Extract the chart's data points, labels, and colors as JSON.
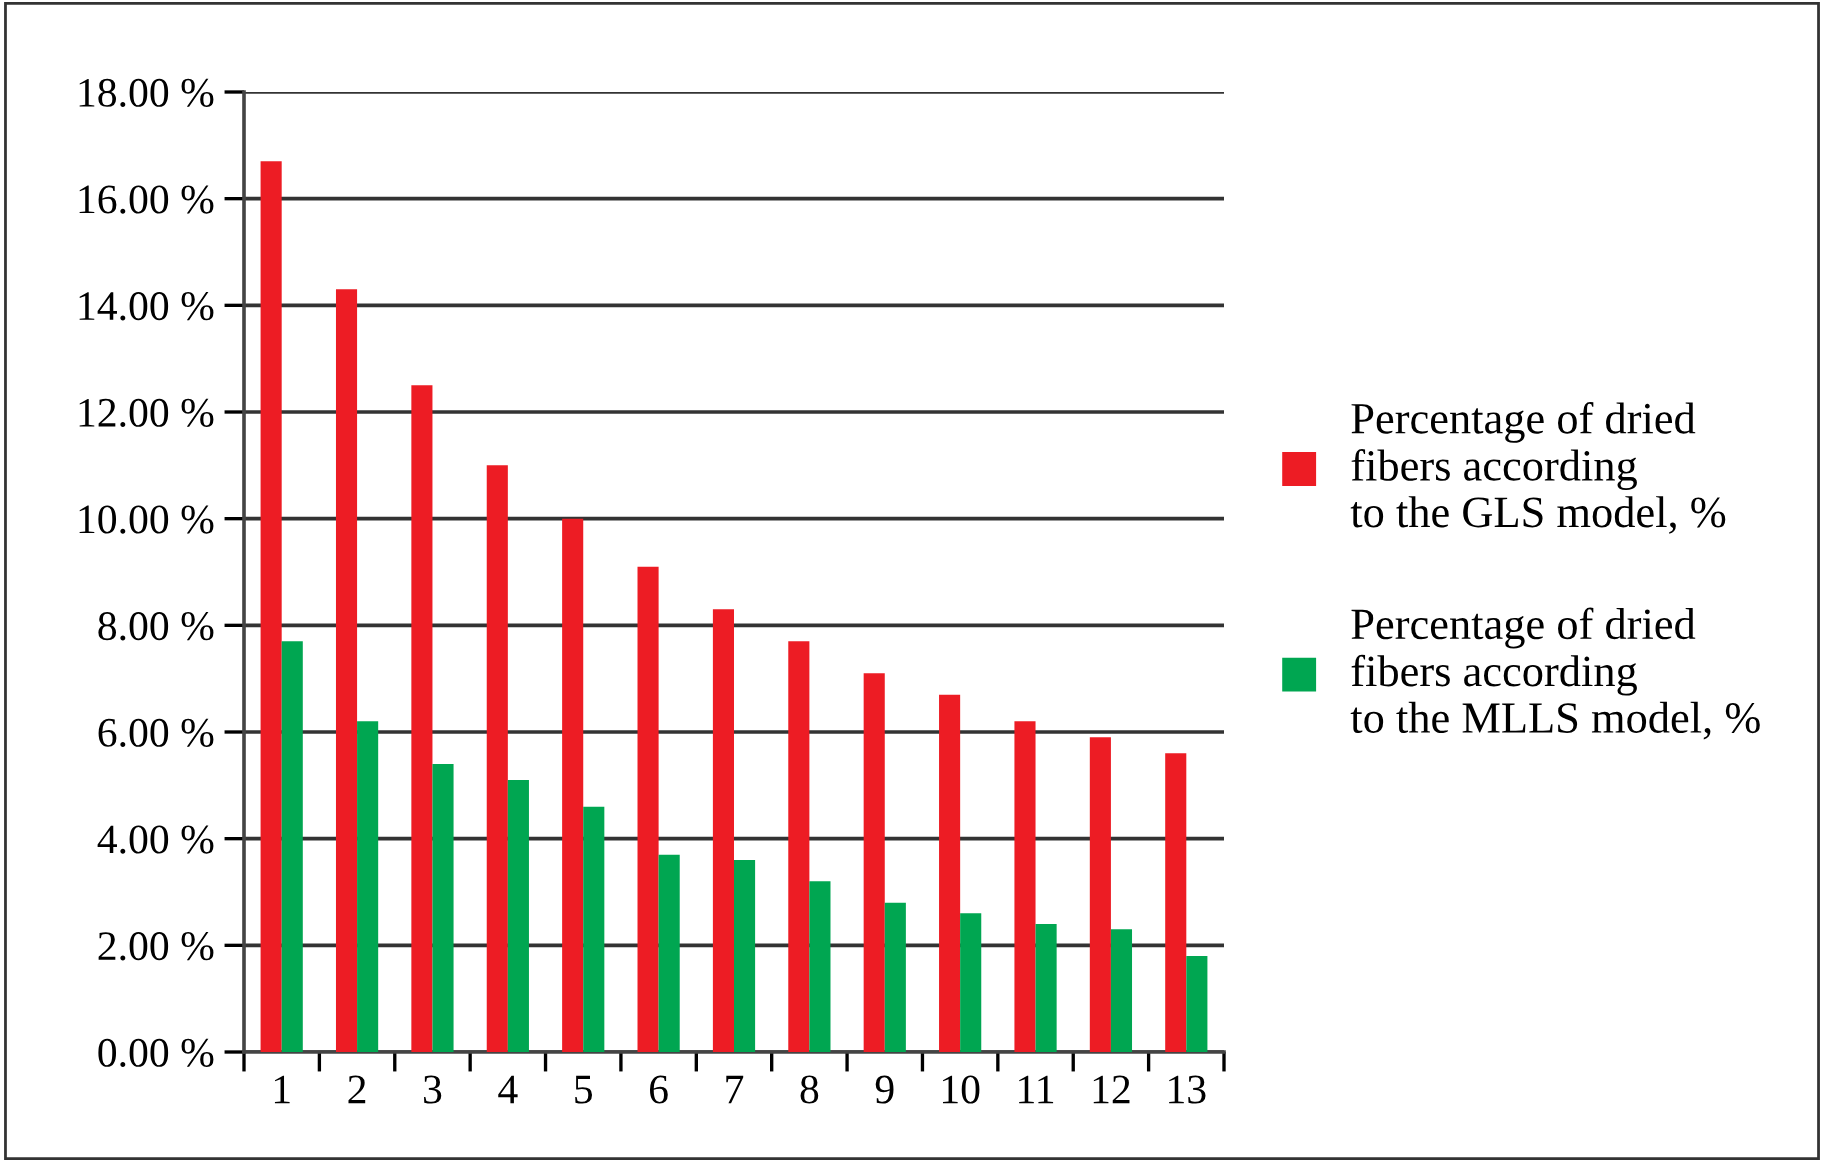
{
  "chart_data": {
    "type": "bar",
    "categories": [
      "1",
      "2",
      "3",
      "4",
      "5",
      "6",
      "7",
      "8",
      "9",
      "10",
      "11",
      "12",
      "13"
    ],
    "series": [
      {
        "name": "Percentage of dried\nfibers according\nto the GLS model, %",
        "color": "#ed1c24",
        "values": [
          16.7,
          14.3,
          12.5,
          11.0,
          10.0,
          9.1,
          8.3,
          7.7,
          7.1,
          6.7,
          6.2,
          5.9,
          5.6
        ]
      },
      {
        "name": "Percentage of dried\nfibers according\nto the MLLS model, %",
        "color": "#00a651",
        "values": [
          7.7,
          6.2,
          5.4,
          5.1,
          4.6,
          3.7,
          3.6,
          3.2,
          2.8,
          2.6,
          2.4,
          2.3,
          1.8
        ]
      }
    ],
    "ylim": [
      0,
      18
    ],
    "yticks": [
      {
        "value": 0,
        "label": "0.00 %"
      },
      {
        "value": 2,
        "label": "2.00 %"
      },
      {
        "value": 4,
        "label": "4.00 %"
      },
      {
        "value": 6,
        "label": "6.00 %"
      },
      {
        "value": 8,
        "label": "8.00 %"
      },
      {
        "value": 10,
        "label": "10.00 %"
      },
      {
        "value": 12,
        "label": "12.00 %"
      },
      {
        "value": 14,
        "label": "14.00 %"
      },
      {
        "value": 16,
        "label": "16.00 %"
      },
      {
        "value": 18,
        "label": "18.00 %"
      }
    ],
    "grid": "y",
    "legend": "right"
  }
}
